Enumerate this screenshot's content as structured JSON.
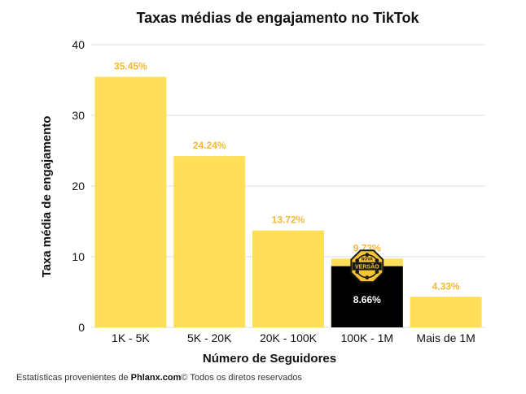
{
  "chart_data": {
    "type": "bar",
    "title": "Taxas médias de engajamento no TikTok",
    "xlabel": "Número de Seguidores",
    "ylabel": "Taxa média de engajamento",
    "categories": [
      "1K - 5K",
      "5K - 20K",
      "20K - 100K",
      "100K - 1M",
      "Mais de 1M"
    ],
    "series": [
      {
        "values": [
          35.45,
          24.24,
          13.72,
          9.73,
          4.33
        ],
        "labels": [
          "35.45%",
          "24.24%",
          "13.72%",
          "9.73%",
          "4.33%"
        ],
        "color": "#FFDE59"
      },
      {
        "values": [
          null,
          null,
          null,
          8.66,
          null
        ],
        "labels": [
          null,
          null,
          null,
          "8.66%",
          null
        ],
        "color": "#000000"
      }
    ],
    "ylim": [
      0,
      40
    ],
    "yticks": [
      0,
      10,
      20,
      30,
      40
    ],
    "grid": true,
    "label_color": "#F2B935"
  },
  "badge": {
    "line1": "NOVA",
    "line2": "VERSÃO"
  },
  "footer": {
    "prefix": "Estatísticas provenientes de",
    "brand": "Phlanx.com",
    "suffix": "© Todos os diretos reservados"
  }
}
